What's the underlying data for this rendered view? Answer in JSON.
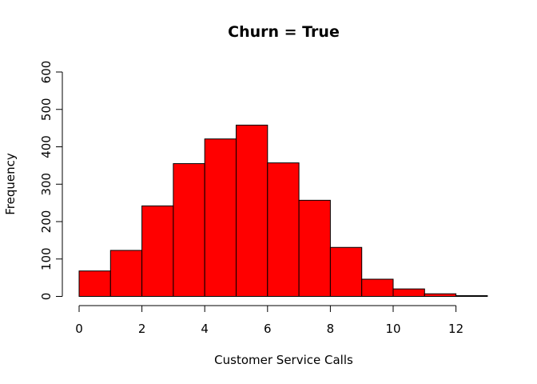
{
  "chart_data": {
    "type": "bar",
    "subtype": "histogram",
    "title": "Churn = True",
    "xlabel": "Customer Service Calls",
    "ylabel": "Frequency",
    "bins": [
      {
        "start": 0,
        "end": 1,
        "count": 68
      },
      {
        "start": 1,
        "end": 2,
        "count": 123
      },
      {
        "start": 2,
        "end": 3,
        "count": 242
      },
      {
        "start": 3,
        "end": 4,
        "count": 355
      },
      {
        "start": 4,
        "end": 5,
        "count": 421
      },
      {
        "start": 5,
        "end": 6,
        "count": 458
      },
      {
        "start": 6,
        "end": 7,
        "count": 357
      },
      {
        "start": 7,
        "end": 8,
        "count": 257
      },
      {
        "start": 8,
        "end": 9,
        "count": 131
      },
      {
        "start": 9,
        "end": 10,
        "count": 46
      },
      {
        "start": 10,
        "end": 11,
        "count": 20
      },
      {
        "start": 11,
        "end": 12,
        "count": 7
      },
      {
        "start": 12,
        "end": 13,
        "count": 2
      }
    ],
    "xticks": [
      0,
      2,
      4,
      6,
      8,
      10,
      12
    ],
    "yticks": [
      0,
      100,
      200,
      300,
      400,
      500,
      600
    ],
    "xlim": [
      0,
      13
    ],
    "ylim": [
      0,
      600
    ],
    "bar_color": "#ff0000",
    "grid": false,
    "legend": "none"
  }
}
